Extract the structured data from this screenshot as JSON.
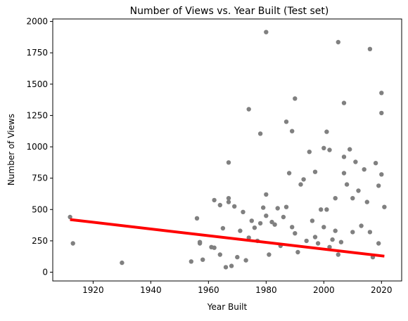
{
  "chart_data": {
    "type": "scatter",
    "title": "Number of Views vs. Year Built (Test set)",
    "xlabel": "Year Built",
    "ylabel": "Number of Views",
    "xlim": [
      1906,
      2027
    ],
    "ylim": [
      -70,
      2020
    ],
    "xticks": [
      1920,
      1940,
      1960,
      1980,
      2000,
      2020
    ],
    "yticks": [
      0,
      250,
      500,
      750,
      1000,
      1250,
      1500,
      1750,
      2000
    ],
    "grid": false,
    "legend": "none",
    "point_color": "#808080",
    "line_color": "#ff0000",
    "points": {
      "x": [
        1912,
        1913,
        1930,
        1954,
        1956,
        1957,
        1957,
        1958,
        1961,
        1962,
        1962,
        1964,
        1964,
        1965,
        1966,
        1967,
        1967,
        1967,
        1968,
        1969,
        1970,
        1971,
        1972,
        1973,
        1974,
        1974,
        1975,
        1976,
        1977,
        1978,
        1978,
        1979,
        1980,
        1980,
        1980,
        1981,
        1982,
        1983,
        1984,
        1985,
        1986,
        1987,
        1987,
        1988,
        1989,
        1989,
        1990,
        1990,
        1991,
        1992,
        1993,
        1994,
        1995,
        1996,
        1997,
        1997,
        1998,
        1999,
        2000,
        2000,
        2001,
        2001,
        2002,
        2002,
        2003,
        2004,
        2004,
        2005,
        2005,
        2006,
        2007,
        2007,
        2007,
        2008,
        2009,
        2010,
        2010,
        2011,
        2012,
        2013,
        2014,
        2015,
        2016,
        2016,
        2017,
        2018,
        2019,
        2019,
        2020,
        2020,
        2020,
        2021
      ],
      "y": [
        440,
        230,
        75,
        85,
        430,
        240,
        230,
        100,
        200,
        575,
        195,
        535,
        140,
        350,
        40,
        875,
        590,
        560,
        50,
        525,
        120,
        330,
        480,
        95,
        1300,
        275,
        410,
        355,
        250,
        1105,
        390,
        515,
        1915,
        620,
        450,
        140,
        400,
        380,
        510,
        210,
        440,
        1200,
        520,
        790,
        1125,
        360,
        1385,
        310,
        160,
        700,
        740,
        250,
        960,
        410,
        800,
        280,
        230,
        500,
        990,
        360,
        1120,
        500,
        975,
        200,
        260,
        590,
        330,
        1835,
        140,
        240,
        1350,
        920,
        790,
        700,
        980,
        320,
        590,
        880,
        650,
        370,
        820,
        560,
        1780,
        320,
        120,
        870,
        690,
        230,
        1430,
        1270,
        780,
        520
      ]
    },
    "regression": {
      "x": [
        1912,
        2021
      ],
      "y": [
        420,
        128
      ]
    }
  }
}
